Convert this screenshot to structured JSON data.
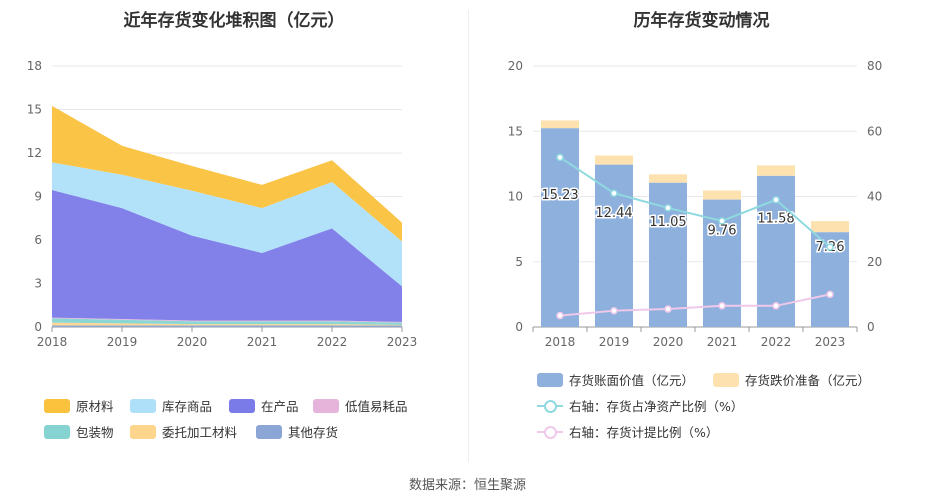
{
  "chart_data": [
    {
      "type": "area",
      "title": "近年存货变化堆积图（亿元）",
      "stacked": true,
      "categories": [
        "2018",
        "2019",
        "2020",
        "2021",
        "2022",
        "2023"
      ],
      "ylim": [
        0,
        18
      ],
      "yticks": [
        "0",
        "3",
        "6",
        "9",
        "12",
        "15",
        "18"
      ],
      "grid": true,
      "legend_position": "bottom",
      "series": [
        {
          "name": "其他存货",
          "color": "#8ba6d6",
          "values": [
            0.1,
            0.1,
            0.1,
            0.1,
            0.1,
            0.1
          ]
        },
        {
          "name": "委托加工材料",
          "color": "#fdd58d",
          "values": [
            0.2,
            0.15,
            0.1,
            0.1,
            0.1,
            0.05
          ]
        },
        {
          "name": "包装物",
          "color": "#86d4d2",
          "values": [
            0.3,
            0.25,
            0.2,
            0.2,
            0.2,
            0.15
          ]
        },
        {
          "name": "低值易耗品",
          "color": "#e6b3db",
          "values": [
            0.05,
            0.05,
            0.05,
            0.05,
            0.05,
            0.05
          ]
        },
        {
          "name": "在产品",
          "color": "#7a7ae8",
          "values": [
            8.8,
            7.65,
            5.85,
            4.65,
            6.35,
            2.45
          ]
        },
        {
          "name": "库存商品",
          "color": "#aee0fa",
          "values": [
            1.9,
            2.3,
            3.1,
            3.1,
            3.2,
            3.1
          ]
        },
        {
          "name": "原材料",
          "color": "#fac23d",
          "values": [
            3.9,
            2.0,
            1.7,
            1.6,
            1.5,
            1.3
          ]
        }
      ],
      "legend_order": [
        "原材料",
        "库存商品",
        "在产品",
        "低值易耗品",
        "包装物",
        "委托加工材料",
        "其他存货"
      ]
    },
    {
      "type": "bar",
      "title": "历年存货变动情况",
      "categories": [
        "2018",
        "2019",
        "2020",
        "2021",
        "2022",
        "2023"
      ],
      "ylim_left": [
        0,
        20
      ],
      "yticks_left": [
        "0",
        "5",
        "10",
        "15",
        "20"
      ],
      "ylim_right": [
        0,
        80
      ],
      "yticks_right": [
        "0",
        "20",
        "40",
        "60",
        "80"
      ],
      "grid": true,
      "legend_position": "bottom",
      "series": [
        {
          "name": "存货账面价值（亿元）",
          "kind": "bar",
          "axis": "left",
          "color": "#8eb0dc",
          "values": [
            15.23,
            12.44,
            11.05,
            9.76,
            11.58,
            7.26
          ],
          "labels": [
            "15.23",
            "12.44",
            "11.05",
            "9.76",
            "11.58",
            "7.26"
          ]
        },
        {
          "name": "存货跌价准备（亿元）",
          "kind": "bar-stacked",
          "axis": "left",
          "color": "#fde2b0",
          "values": [
            0.6,
            0.7,
            0.65,
            0.7,
            0.8,
            0.85
          ]
        },
        {
          "name": "右轴：存货占净资产比例（%）",
          "kind": "line",
          "axis": "right",
          "color": "#8fd9e0",
          "values": [
            52,
            41,
            36.5,
            32.5,
            39,
            24.5
          ]
        },
        {
          "name": "右轴：存货计提比例（%）",
          "kind": "line",
          "axis": "right",
          "color": "#f0c8ea",
          "values": [
            3.5,
            5,
            5.5,
            6.5,
            6.5,
            10
          ]
        }
      ]
    }
  ],
  "source": "数据来源：恒生聚源"
}
